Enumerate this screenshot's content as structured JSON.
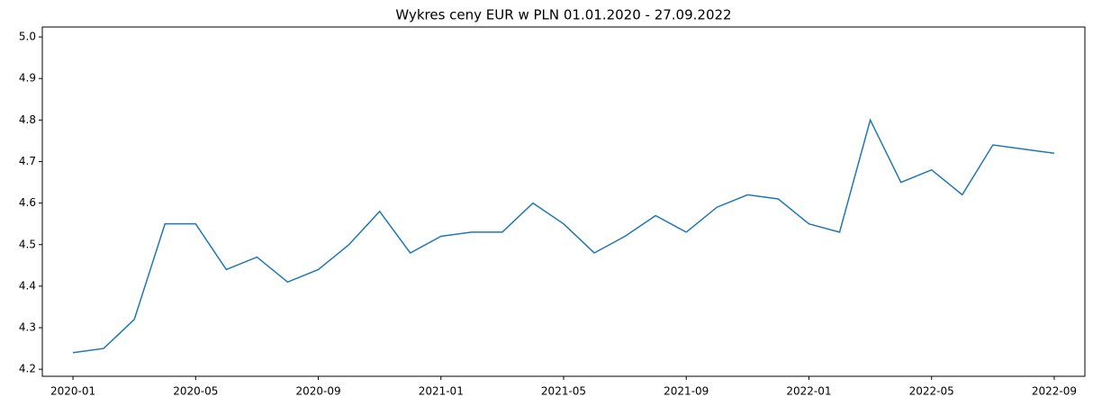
{
  "chart_data": {
    "type": "line",
    "title": "Wykres ceny EUR w PLN 01.01.2020 - 27.09.2022",
    "x": [
      "2020-01",
      "2020-02",
      "2020-03",
      "2020-04",
      "2020-05",
      "2020-06",
      "2020-07",
      "2020-08",
      "2020-09",
      "2020-10",
      "2020-11",
      "2020-12",
      "2021-01",
      "2021-02",
      "2021-03",
      "2021-04",
      "2021-05",
      "2021-06",
      "2021-07",
      "2021-08",
      "2021-09",
      "2021-10",
      "2021-11",
      "2021-12",
      "2022-01",
      "2022-02",
      "2022-03",
      "2022-04",
      "2022-05",
      "2022-06",
      "2022-07",
      "2022-08",
      "2022-09"
    ],
    "series": [
      {
        "color": "#1f77b4",
        "values": [
          4.24,
          4.25,
          4.32,
          4.55,
          4.55,
          4.44,
          4.47,
          4.41,
          4.44,
          4.5,
          4.58,
          4.48,
          4.52,
          4.53,
          4.53,
          4.6,
          4.55,
          4.48,
          4.52,
          4.57,
          4.53,
          4.59,
          4.62,
          4.61,
          4.55,
          4.53,
          4.8,
          4.65,
          4.68,
          4.62,
          4.74,
          4.73,
          4.72
        ]
      }
    ],
    "xlim": [
      "2019-12",
      "2022-10"
    ],
    "xticks": [
      "2020-01",
      "2020-05",
      "2020-09",
      "2021-01",
      "2021-05",
      "2021-09",
      "2022-01",
      "2022-05",
      "2022-09"
    ],
    "ylim": [
      4.183,
      5.024
    ],
    "yticks": [
      4.2,
      4.3,
      4.4,
      4.5,
      4.6,
      4.7,
      4.8,
      4.9,
      {
        "value": 5,
        "label": "5.0"
      }
    ]
  }
}
